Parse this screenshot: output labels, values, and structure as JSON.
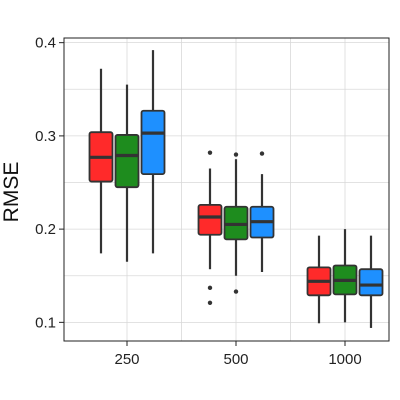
{
  "chart_data": {
    "type": "box",
    "title": "",
    "xlabel": "",
    "ylabel": "RMSE",
    "categories": [
      "250",
      "500",
      "1000"
    ],
    "ylim": [
      0.08,
      0.405
    ],
    "yticks": [
      0.1,
      0.2,
      0.3,
      0.4
    ],
    "ytick_labels": [
      "0.1",
      "0.2",
      "0.3",
      "0.4"
    ],
    "grid": true,
    "legend": "none",
    "series": [
      {
        "color": "#ff2a2a",
        "boxes": [
          {
            "whisker_low": 0.174,
            "q1": 0.251,
            "median": 0.277,
            "q3": 0.304,
            "whisker_high": 0.372,
            "outliers": []
          },
          {
            "whisker_low": 0.157,
            "q1": 0.194,
            "median": 0.213,
            "q3": 0.226,
            "whisker_high": 0.265,
            "outliers": [
              0.282,
              0.137,
              0.121
            ]
          },
          {
            "whisker_low": 0.099,
            "q1": 0.129,
            "median": 0.144,
            "q3": 0.159,
            "whisker_high": 0.193,
            "outliers": []
          }
        ]
      },
      {
        "color": "#1e8c1e",
        "boxes": [
          {
            "whisker_low": 0.165,
            "q1": 0.245,
            "median": 0.279,
            "q3": 0.301,
            "whisker_high": 0.355,
            "outliers": []
          },
          {
            "whisker_low": 0.15,
            "q1": 0.189,
            "median": 0.205,
            "q3": 0.224,
            "whisker_high": 0.275,
            "outliers": [
              0.28,
              0.133
            ]
          },
          {
            "whisker_low": 0.1,
            "q1": 0.13,
            "median": 0.145,
            "q3": 0.161,
            "whisker_high": 0.2,
            "outliers": []
          }
        ]
      },
      {
        "color": "#1e90ff",
        "boxes": [
          {
            "whisker_low": 0.174,
            "q1": 0.259,
            "median": 0.303,
            "q3": 0.327,
            "whisker_high": 0.392,
            "outliers": []
          },
          {
            "whisker_low": 0.154,
            "q1": 0.191,
            "median": 0.208,
            "q3": 0.224,
            "whisker_high": 0.259,
            "outliers": [
              0.281
            ]
          },
          {
            "whisker_low": 0.094,
            "q1": 0.129,
            "median": 0.14,
            "q3": 0.157,
            "whisker_high": 0.193,
            "outliers": []
          }
        ]
      }
    ]
  }
}
